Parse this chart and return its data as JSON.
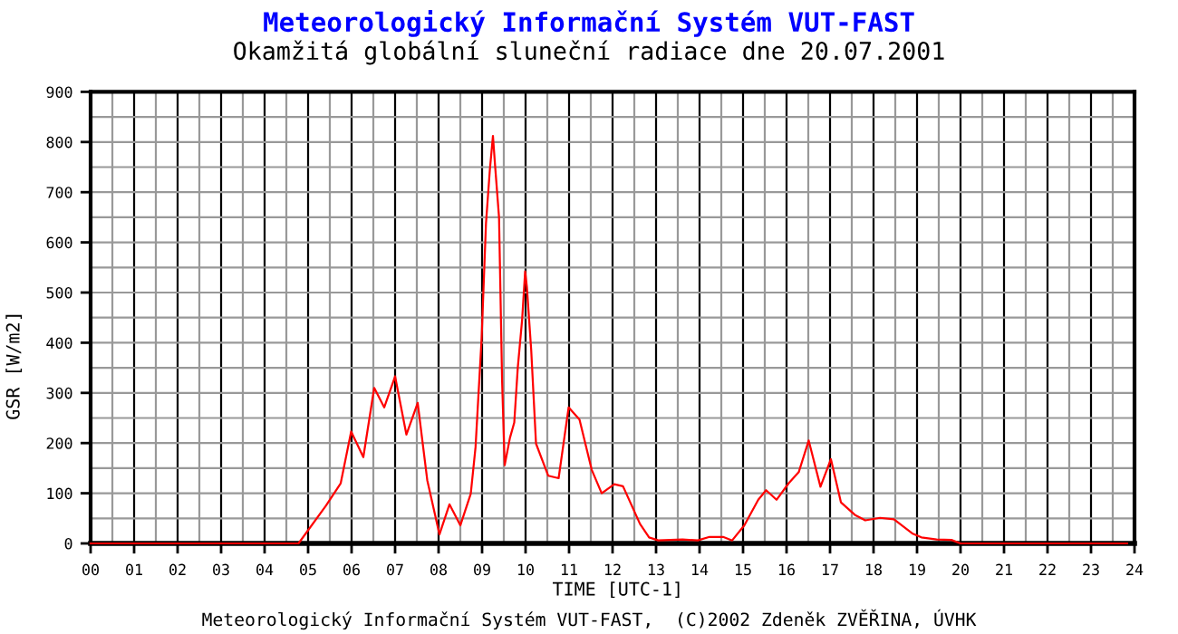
{
  "chart_data": {
    "type": "line",
    "title": "Meteorologický Informační Systém VUT-FAST",
    "subtitle": "Okamžitá globální sluneční radiace dne 20.07.2001",
    "xlabel": "TIME [UTC-1]",
    "ylabel": "GSR [W/m2]",
    "annotations": [
      "Meteorologický Informační Systém VUT-FAST,  (C)2002 Zdeněk ZVĚŘINA, ÚVHK"
    ],
    "x": [
      0,
      4.78,
      5.41,
      5.75,
      5.99,
      6.27,
      6.52,
      6.75,
      7.0,
      7.26,
      7.52,
      7.74,
      8.02,
      8.25,
      8.5,
      8.74,
      8.85,
      8.99,
      9.09,
      9.18,
      9.25,
      9.3,
      9.39,
      9.46,
      9.52,
      9.64,
      9.74,
      9.82,
      9.92,
      9.99,
      10.03,
      10.13,
      10.24,
      10.52,
      10.76,
      10.99,
      11.24,
      11.52,
      11.75,
      12.04,
      12.24,
      12.63,
      12.84,
      13.05,
      13.61,
      13.96,
      14.23,
      14.54,
      14.75,
      15.03,
      15.35,
      15.53,
      15.77,
      16.05,
      16.28,
      16.51,
      16.78,
      17.02,
      17.25,
      17.57,
      17.81,
      18.15,
      18.47,
      18.89,
      19.1,
      19.45,
      19.79,
      20.0,
      23.83
    ],
    "values": [
      0,
      0,
      75,
      120,
      223,
      172,
      310,
      271,
      333,
      217,
      280,
      126,
      18,
      78,
      36,
      99,
      192,
      409,
      638,
      746,
      812,
      752,
      650,
      325,
      156,
      210,
      241,
      349,
      445,
      542,
      511,
      385,
      199,
      135,
      130,
      271,
      247,
      147,
      100,
      118,
      114,
      39,
      12,
      6,
      8,
      6,
      13,
      13,
      6,
      36,
      87,
      106,
      87,
      120,
      142,
      205,
      113,
      168,
      82,
      57,
      46,
      51,
      48,
      20,
      12,
      8,
      7,
      0,
      0
    ],
    "color": "#ff0000",
    "line_style": "solid",
    "xlim": [
      0,
      24
    ],
    "ylim": [
      0,
      900
    ],
    "xticks": [
      {
        "value": 0,
        "label": "00"
      },
      {
        "value": 0.5,
        "label": null
      },
      {
        "value": 1,
        "label": "01"
      },
      {
        "value": 1.5,
        "label": null
      },
      {
        "value": 2,
        "label": "02"
      },
      {
        "value": 2.5,
        "label": null
      },
      {
        "value": 3,
        "label": "03"
      },
      {
        "value": 3.5,
        "label": null
      },
      {
        "value": 4,
        "label": "04"
      },
      {
        "value": 4.5,
        "label": null
      },
      {
        "value": 5,
        "label": "05"
      },
      {
        "value": 5.5,
        "label": null
      },
      {
        "value": 6,
        "label": "06"
      },
      {
        "value": 6.5,
        "label": null
      },
      {
        "value": 7,
        "label": "07"
      },
      {
        "value": 7.5,
        "label": null
      },
      {
        "value": 8,
        "label": "08"
      },
      {
        "value": 8.5,
        "label": null
      },
      {
        "value": 9,
        "label": "09"
      },
      {
        "value": 9.5,
        "label": null
      },
      10,
      {
        "value": 10.5,
        "label": null
      },
      11,
      {
        "value": 11.5,
        "label": null
      },
      12,
      {
        "value": 12.5,
        "label": null
      },
      13,
      {
        "value": 13.5,
        "label": null
      },
      14,
      {
        "value": 14.5,
        "label": null
      },
      15,
      {
        "value": 15.5,
        "label": null
      },
      16,
      {
        "value": 16.5,
        "label": null
      },
      17,
      {
        "value": 17.5,
        "label": null
      },
      18,
      {
        "value": 18.5,
        "label": null
      },
      19,
      {
        "value": 19.5,
        "label": null
      },
      20,
      {
        "value": 20.5,
        "label": null
      },
      21,
      {
        "value": 21.5,
        "label": null
      },
      22,
      {
        "value": 22.5,
        "label": null
      },
      23,
      {
        "value": 23.5,
        "label": null
      },
      24
    ],
    "yticks": [
      0,
      {
        "value": 50,
        "label": null
      },
      100,
      {
        "value": 150,
        "label": null
      },
      200,
      {
        "value": 250,
        "label": null
      },
      300,
      {
        "value": 350,
        "label": null
      },
      400,
      {
        "value": 450,
        "label": null
      },
      500,
      {
        "value": 550,
        "label": null
      },
      600,
      {
        "value": 650,
        "label": null
      },
      700,
      {
        "value": 750,
        "label": null
      },
      800,
      {
        "value": 850,
        "label": null
      },
      900
    ],
    "grid": true
  }
}
